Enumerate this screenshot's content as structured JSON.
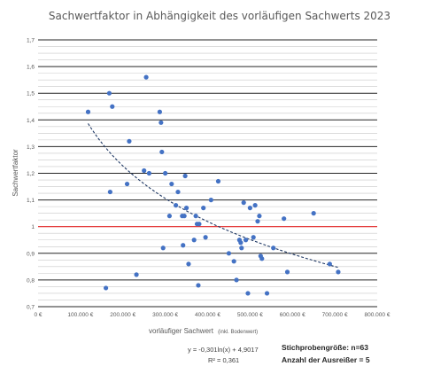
{
  "chart_data": {
    "type": "scatter",
    "title": "Sachwertfaktor in Abhängigkeit des vorläufigen Sachwerts 2023",
    "xlabel": "vorläufiger Sachwert",
    "xlabel_suffix": "(inkl. Bodenwert)",
    "ylabel": "Sachwertfaktor",
    "xlim": [
      0,
      800000
    ],
    "ylim": [
      0.7,
      1.7
    ],
    "x_ticks": [
      0,
      100000,
      200000,
      300000,
      400000,
      500000,
      600000,
      700000,
      800000
    ],
    "x_tick_labels": [
      "0 €",
      "100.000 €",
      "200.000 €",
      "300.000 €",
      "400.000 €",
      "500.000 €",
      "600.000 €",
      "700.000 €",
      "800.000 €"
    ],
    "y_ticks": [
      0.7,
      0.8,
      0.9,
      1.0,
      1.1,
      1.2,
      1.3,
      1.4,
      1.5,
      1.6,
      1.7
    ],
    "y_tick_labels": [
      "0,7",
      "0,8",
      "0,9",
      "1",
      "1,1",
      "1,2",
      "1,3",
      "1,4",
      "1,5",
      "1,6",
      "1,7"
    ],
    "grid": true,
    "reference_line": {
      "y": 1.0,
      "color": "#e02020"
    },
    "trendline": {
      "type": "log",
      "a": -0.301,
      "b": 4.9017,
      "x_range": [
        118000,
        710000
      ],
      "style": "dashed",
      "color": "#1f3864"
    },
    "equation": "y = -0,301ln(x) + 4,9017",
    "r_squared": "R² = 0,361",
    "point_color": "#4472c4",
    "points": [
      [
        118000,
        1.43
      ],
      [
        160000,
        0.77
      ],
      [
        168000,
        1.5
      ],
      [
        170000,
        1.13
      ],
      [
        175000,
        1.45
      ],
      [
        210000,
        1.16
      ],
      [
        215000,
        1.32
      ],
      [
        232000,
        0.82
      ],
      [
        250000,
        1.21
      ],
      [
        255000,
        1.56
      ],
      [
        262000,
        1.2
      ],
      [
        287000,
        1.43
      ],
      [
        290000,
        1.39
      ],
      [
        292000,
        1.28
      ],
      [
        295000,
        0.92
      ],
      [
        300000,
        1.2
      ],
      [
        310000,
        1.04
      ],
      [
        315000,
        1.16
      ],
      [
        325000,
        1.08
      ],
      [
        330000,
        1.13
      ],
      [
        340000,
        1.04
      ],
      [
        342000,
        0.93
      ],
      [
        345000,
        1.04
      ],
      [
        347000,
        1.19
      ],
      [
        350000,
        1.07
      ],
      [
        355000,
        0.86
      ],
      [
        368000,
        0.95
      ],
      [
        372000,
        1.04
      ],
      [
        375000,
        1.01
      ],
      [
        378000,
        0.78
      ],
      [
        380000,
        1.01
      ],
      [
        390000,
        1.07
      ],
      [
        395000,
        0.96
      ],
      [
        408000,
        1.1
      ],
      [
        425000,
        1.17
      ],
      [
        450000,
        0.9
      ],
      [
        462000,
        0.87
      ],
      [
        468000,
        0.8
      ],
      [
        475000,
        0.95
      ],
      [
        478000,
        0.94
      ],
      [
        480000,
        0.92
      ],
      [
        485000,
        1.09
      ],
      [
        490000,
        0.95
      ],
      [
        495000,
        0.75
      ],
      [
        500000,
        1.07
      ],
      [
        508000,
        0.96
      ],
      [
        512000,
        1.08
      ],
      [
        518000,
        1.02
      ],
      [
        522000,
        1.04
      ],
      [
        525000,
        0.89
      ],
      [
        528000,
        0.88
      ],
      [
        540000,
        0.75
      ],
      [
        555000,
        0.92
      ],
      [
        580000,
        1.03
      ],
      [
        588000,
        0.83
      ],
      [
        650000,
        1.05
      ],
      [
        688000,
        0.86
      ],
      [
        708000,
        0.83
      ]
    ]
  },
  "stats": {
    "sample_size": "Stichprobengröße: n=63",
    "outliers": "Anzahl der Ausreißer = 5"
  }
}
